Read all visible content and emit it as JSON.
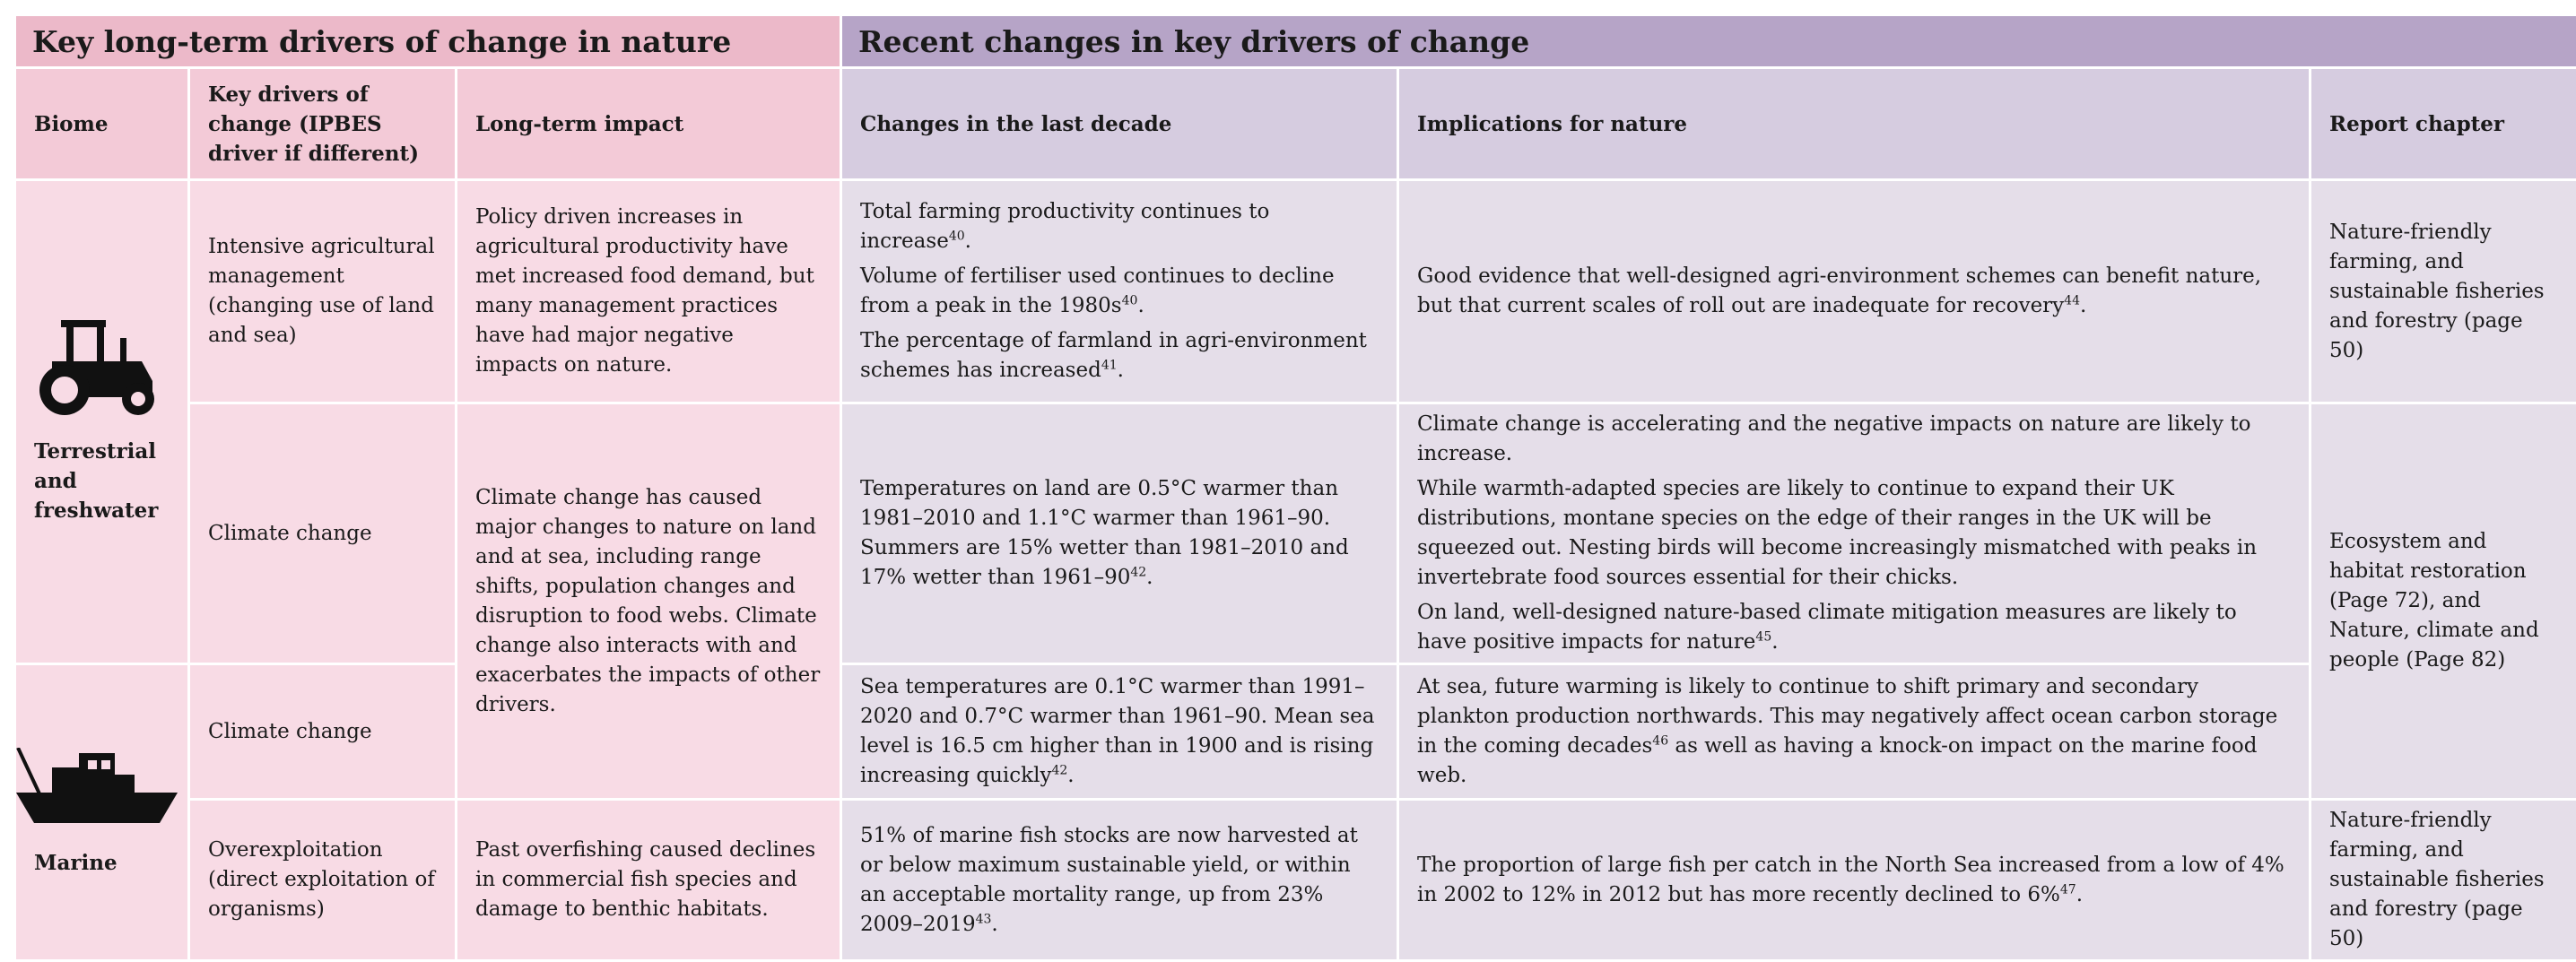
{
  "header": {
    "left_title": "Key long-term drivers of change in nature",
    "right_title": "Recent changes in key drivers of change"
  },
  "columns": [
    "Biome",
    "Key drivers of change (IPBES driver if different)",
    "Long-term impact",
    "Changes in the last decade",
    "Implications for nature",
    "Report chapter"
  ],
  "biomes": [
    "Terrestrial and freshwater",
    "Marine"
  ],
  "rows": [
    {
      "driver": "Intensive agricultural management (changing use of land and sea)",
      "impact": "Policy driven increases in agricultural productivity have met increased food demand, but many management practices have had major negative impacts on nature.",
      "changes": [
        {
          "text": "Total farming productivity continues to increase",
          "ref": "40",
          "end": "."
        },
        {
          "text": "Volume of fertiliser used continues to decline from a peak in the 1980s",
          "ref": "40",
          "end": "."
        },
        {
          "text": "The percentage of farmland in agri-environment schemes has increased",
          "ref": "41",
          "end": "."
        }
      ],
      "implications": [
        {
          "text": "Good evidence that well-designed agri-environment schemes can benefit nature, but that current scales of roll out are inadequate for recovery",
          "ref": "44",
          "end": "."
        }
      ],
      "chapter": "Nature-friendly farming, and sustainable fisheries and forestry (page 50)"
    },
    {
      "driver": "Climate change",
      "impact": "Climate change has caused major changes to nature on land and at sea, including range shifts, population changes and disruption to food webs. Climate change also interacts with and exacerbates the impacts of other drivers.",
      "changes": [
        {
          "text": "Temperatures on land are 0.5°C warmer than 1981–2010 and 1.1°C warmer than 1961–90. Summers are 15% wetter than 1981–2010 and 17% wetter than 1961–90",
          "ref": "42",
          "end": "."
        }
      ],
      "implications": [
        {
          "text": "Climate change is accelerating and the negative impacts on nature are likely to increase."
        },
        {
          "text": "While warmth-adapted species are likely to continue to expand their UK distributions, montane species on the edge of their ranges in the UK will be squeezed out. Nesting birds will become increasingly mismatched with peaks in invertebrate food sources essential for their chicks."
        },
        {
          "text": "On land, well-designed nature-based climate mitigation measures are likely to have positive impacts for nature",
          "ref": "45",
          "end": "."
        }
      ],
      "chapter": "Ecosystem and habitat restoration (Page 72), and Nature, climate and people (Page 82)"
    },
    {
      "driver": "Climate change",
      "changes": [
        {
          "text": "Sea temperatures are 0.1°C warmer than 1991–2020 and 0.7°C warmer than 1961–90. Mean sea level is 16.5 cm higher than in 1900 and is rising increasing quickly",
          "ref": "42",
          "end": "."
        }
      ],
      "implications": [
        {
          "text": "At sea, future warming is likely to continue to shift primary and secondary plankton production northwards. This may negatively affect ocean carbon storage in the coming decades",
          "ref": "46",
          "end": " as well as having a knock-on impact on the marine food web."
        }
      ]
    },
    {
      "driver": "Overexploitation (direct exploitation of organisms)",
      "impact": "Past overfishing caused declines in commercial fish species and damage to benthic habitats.",
      "changes": [
        {
          "text": "51% of marine fish stocks are now harvested at or below maximum sustainable yield, or within an acceptable mortality range, up from 23% 2009–2019",
          "ref": "43",
          "end": "."
        }
      ],
      "implications": [
        {
          "text": "The proportion of large fish per catch in the North Sea increased from a low of 4% in 2002 to 12% in 2012 but has more recently declined to 6%",
          "ref": "47",
          "end": "."
        }
      ],
      "chapter": "Nature-friendly farming, and sustainable fisheries and forestry (page 50)"
    }
  ]
}
